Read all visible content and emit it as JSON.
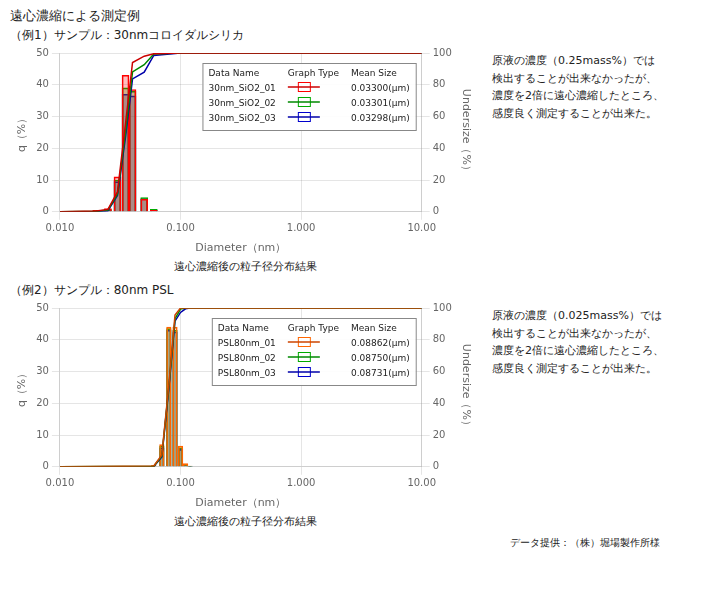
{
  "title": "遠心濃縮による測定例",
  "annotations": [
    "データ提供：（株）堀場製作所様"
  ],
  "chart_data": [
    {
      "type": "bar",
      "subtitle": "（例1）サンプル：30nmコロイダルシリカ",
      "caption": "遠心濃縮後の粒子径分布結果",
      "annotations": [
        "原液の濃度（0.25mass%）では\n検出することが出来なかったが、\n濃度を2倍に遠心濃縮したところ、\n感度良く測定することが出来た。"
      ],
      "xlabel": "Diameter（nm）",
      "ylabel": "q（%）",
      "y2label": "Undersize（%）",
      "log": "x",
      "xlim": [
        0.01,
        10
      ],
      "xticks": [
        {
          "value": 0.01,
          "label": "0.010"
        },
        {
          "value": 0.1,
          "label": "0.100"
        },
        {
          "value": 1,
          "label": "1.000"
        },
        {
          "value": 10,
          "label": "10.00"
        }
      ],
      "ylim": [
        0,
        50
      ],
      "yticks": [
        0,
        10,
        20,
        30,
        40,
        50
      ],
      "y2lim": [
        0,
        100
      ],
      "y2ticks": [
        0,
        20,
        40,
        60,
        80,
        100
      ],
      "grid": true,
      "legend_header": [
        "Data Name",
        "Graph Type",
        "Mean Size"
      ],
      "series": [
        {
          "name": "30nm_SiO2_01",
          "mean_size": "0.03300(μm)",
          "type": "bar",
          "color": "#ff0000",
          "x": [
            0.02,
            0.025,
            0.03,
            0.035,
            0.04,
            0.05,
            0.06
          ],
          "values": [
            0.5,
            1.0,
            11.0,
            43.0,
            38.5,
            4.0,
            0.5
          ]
        },
        {
          "name": "30nm_SiO2_01",
          "type": "line",
          "axis": "y2",
          "color": "#cc0000",
          "x": [
            0.01,
            0.02,
            0.025,
            0.03,
            0.035,
            0.04,
            0.05,
            0.06,
            0.1,
            1.0,
            10.0
          ],
          "values": [
            0,
            0.5,
            1.5,
            12.5,
            55.5,
            94.0,
            98.0,
            99.5,
            100,
            100,
            100
          ]
        },
        {
          "name": "30nm_SiO2_02",
          "mean_size": "0.03301(μm)",
          "type": "bar",
          "color": "#00aa00",
          "x": [
            0.02,
            0.025,
            0.03,
            0.035,
            0.04,
            0.05,
            0.06
          ],
          "values": [
            0.3,
            0.8,
            10.0,
            39.0,
            38.0,
            4.5,
            0.8
          ]
        },
        {
          "name": "30nm_SiO2_02",
          "type": "line",
          "axis": "y2",
          "color": "#008800",
          "x": [
            0.01,
            0.02,
            0.025,
            0.03,
            0.035,
            0.04,
            0.05,
            0.06,
            0.1,
            1.0,
            10.0
          ],
          "values": [
            0,
            0.3,
            1.1,
            11.1,
            50.1,
            88.1,
            92.6,
            99.4,
            100,
            100,
            100
          ]
        },
        {
          "name": "30nm_SiO2_03",
          "mean_size": "0.03298(μm)",
          "type": "bar",
          "color": "#0000cc",
          "x": [
            0.02,
            0.025,
            0.03,
            0.035,
            0.04,
            0.05,
            0.06
          ],
          "values": [
            0.2,
            0.5,
            9.5,
            37.0,
            36.5,
            4.2,
            0.6
          ]
        },
        {
          "name": "30nm_SiO2_03",
          "type": "line",
          "axis": "y2",
          "color": "#0000aa",
          "x": [
            0.01,
            0.02,
            0.025,
            0.03,
            0.035,
            0.04,
            0.05,
            0.06,
            0.1,
            1.0,
            10.0
          ],
          "values": [
            0,
            0.2,
            0.7,
            10.2,
            47.2,
            83.7,
            87.9,
            98.5,
            100,
            100,
            100
          ]
        }
      ]
    },
    {
      "type": "bar",
      "subtitle": "（例2）サンプル：80nm PSL",
      "caption": "遠心濃縮後の粒子径分布結果",
      "annotations": [
        "原液の濃度（0.025mass%）では\n検出することが出来なかったが、\n濃度を2倍に遠心濃縮したところ、\n感度良く測定することが出来た。"
      ],
      "xlabel": "Diameter（nm）",
      "ylabel": "q（%）",
      "y2label": "Undersize（%）",
      "log": "x",
      "xlim": [
        0.01,
        10
      ],
      "xticks": [
        {
          "value": 0.01,
          "label": "0.010"
        },
        {
          "value": 0.1,
          "label": "0.100"
        },
        {
          "value": 1,
          "label": "1.000"
        },
        {
          "value": 10,
          "label": "10.00"
        }
      ],
      "ylim": [
        0,
        50
      ],
      "yticks": [
        0,
        10,
        20,
        30,
        40,
        50
      ],
      "y2lim": [
        0,
        100
      ],
      "y2ticks": [
        0,
        20,
        40,
        60,
        80,
        100
      ],
      "grid": true,
      "legend_header": [
        "Data Name",
        "Graph Type",
        "Mean Size"
      ],
      "series": [
        {
          "name": "PSL80nm_01",
          "mean_size": "0.08862(μm)",
          "type": "bar",
          "color": "#ff6600",
          "x": [
            0.06,
            0.07,
            0.08,
            0.09,
            0.1,
            0.11,
            0.12
          ],
          "values": [
            0.5,
            7.0,
            44.0,
            44.0,
            6.5,
            1.0,
            0.2
          ]
        },
        {
          "name": "PSL80nm_01",
          "type": "line",
          "axis": "y2",
          "color": "#cc4400",
          "x": [
            0.01,
            0.06,
            0.07,
            0.08,
            0.09,
            0.1,
            0.11,
            0.12,
            1.0,
            10.0
          ],
          "values": [
            0,
            0.5,
            7.5,
            51.5,
            95.5,
            100,
            100,
            100,
            100,
            100
          ]
        },
        {
          "name": "PSL80nm_02",
          "mean_size": "0.08750(μm)",
          "type": "bar",
          "color": "#00aa00",
          "x": [
            0.06,
            0.07,
            0.08,
            0.09,
            0.1,
            0.11,
            0.12
          ],
          "values": [
            0.3,
            6.5,
            43.5,
            43.0,
            6.0,
            0.8,
            0.1
          ]
        },
        {
          "name": "PSL80nm_02",
          "type": "line",
          "axis": "y2",
          "color": "#008800",
          "x": [
            0.01,
            0.06,
            0.07,
            0.08,
            0.09,
            0.1,
            0.11,
            0.12,
            1.0,
            10.0
          ],
          "values": [
            0,
            0.3,
            6.8,
            50.3,
            93.3,
            99.3,
            100,
            100,
            100,
            100
          ]
        },
        {
          "name": "PSL80nm_03",
          "mean_size": "0.08731(μm)",
          "type": "bar",
          "color": "#0000cc",
          "x": [
            0.06,
            0.07,
            0.08,
            0.09,
            0.1,
            0.11,
            0.12
          ],
          "values": [
            0.2,
            6.0,
            43.0,
            42.5,
            5.5,
            0.8,
            0.1
          ]
        },
        {
          "name": "PSL80nm_03",
          "type": "line",
          "axis": "y2",
          "color": "#0000aa",
          "x": [
            0.01,
            0.06,
            0.07,
            0.08,
            0.09,
            0.1,
            0.11,
            0.12,
            1.0,
            10.0
          ],
          "values": [
            0,
            0.2,
            6.2,
            49.2,
            91.7,
            97.2,
            99.5,
            100,
            100,
            100
          ]
        }
      ]
    }
  ]
}
